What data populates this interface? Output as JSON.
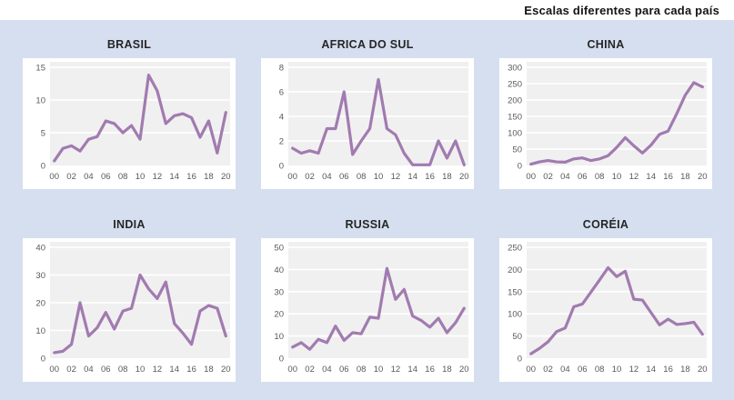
{
  "header": {
    "title": "Escalas diferentes para cada país"
  },
  "colors": {
    "page_background": "#d5dff0",
    "panel_background": "#ffffff",
    "plot_background": "#f0f0f0",
    "gridline": "#ffffff",
    "line": "#a17bb0",
    "axis_label": "#595959",
    "chart_title": "#262626",
    "main_title": "#141414"
  },
  "chart_data": {
    "type": "line",
    "title": "Escalas diferentes para cada país",
    "x_categories": [
      "00",
      "01",
      "02",
      "03",
      "04",
      "05",
      "06",
      "07",
      "08",
      "09",
      "10",
      "11",
      "12",
      "13",
      "14",
      "15",
      "16",
      "17",
      "18",
      "19",
      "20"
    ],
    "x_tick_labels": [
      "00",
      "02",
      "04",
      "06",
      "08",
      "10",
      "12",
      "14",
      "16",
      "18",
      "20"
    ],
    "legend": "none",
    "grid": "horizontal",
    "charts": [
      {
        "title": "BRASIL",
        "ylim": [
          0,
          15
        ],
        "y_ticks": [
          0,
          5,
          10,
          15
        ],
        "values": [
          0.7,
          2.6,
          3,
          2.2,
          4,
          4.4,
          6.8,
          6.4,
          5,
          6.1,
          4,
          13.8,
          11.4,
          6.4,
          7.6,
          7.9,
          7.3,
          4.3,
          6.8,
          1.9,
          8.1
        ]
      },
      {
        "title": "AFRICA DO SUL",
        "ylim": [
          0,
          8
        ],
        "y_ticks": [
          0,
          2,
          4,
          6,
          8
        ],
        "values": [
          1.4,
          1,
          1.2,
          1,
          3,
          3,
          6,
          0.9,
          2,
          3,
          7,
          3,
          2.5,
          1,
          0.05,
          0.05,
          0.05,
          2,
          0.6,
          2,
          0.05
        ]
      },
      {
        "title": "CHINA",
        "ylim": [
          0,
          300
        ],
        "y_ticks": [
          0,
          50,
          100,
          150,
          200,
          250,
          300
        ],
        "values": [
          4,
          11,
          15,
          11,
          10,
          20,
          23,
          15,
          20,
          30,
          55,
          85,
          60,
          38,
          62,
          95,
          105,
          158,
          215,
          253,
          240
        ]
      },
      {
        "title": "INDIA",
        "ylim": [
          0,
          40
        ],
        "y_ticks": [
          0,
          10,
          20,
          30,
          40
        ],
        "values": [
          2,
          2.5,
          5,
          20,
          8,
          11,
          16.5,
          10.5,
          17,
          18,
          30,
          25,
          21.5,
          27.5,
          12.5,
          9,
          5,
          17,
          19,
          18,
          8
        ]
      },
      {
        "title": "RUSSIA",
        "ylim": [
          0,
          50
        ],
        "y_ticks": [
          0,
          10,
          20,
          30,
          40,
          50
        ],
        "values": [
          5,
          7,
          4,
          8.5,
          7,
          14.5,
          8,
          11.5,
          11,
          18.5,
          18,
          40.5,
          26.5,
          31,
          19,
          17,
          14,
          18,
          11.5,
          16,
          22.5
        ]
      },
      {
        "title": "CORÉIA",
        "ylim": [
          0,
          250
        ],
        "y_ticks": [
          0,
          50,
          100,
          150,
          200,
          250
        ],
        "values": [
          10,
          22,
          37,
          60,
          68,
          116,
          122,
          149,
          176,
          204,
          184,
          196,
          133,
          131,
          103,
          75,
          88,
          76,
          78,
          81,
          54
        ]
      }
    ]
  }
}
